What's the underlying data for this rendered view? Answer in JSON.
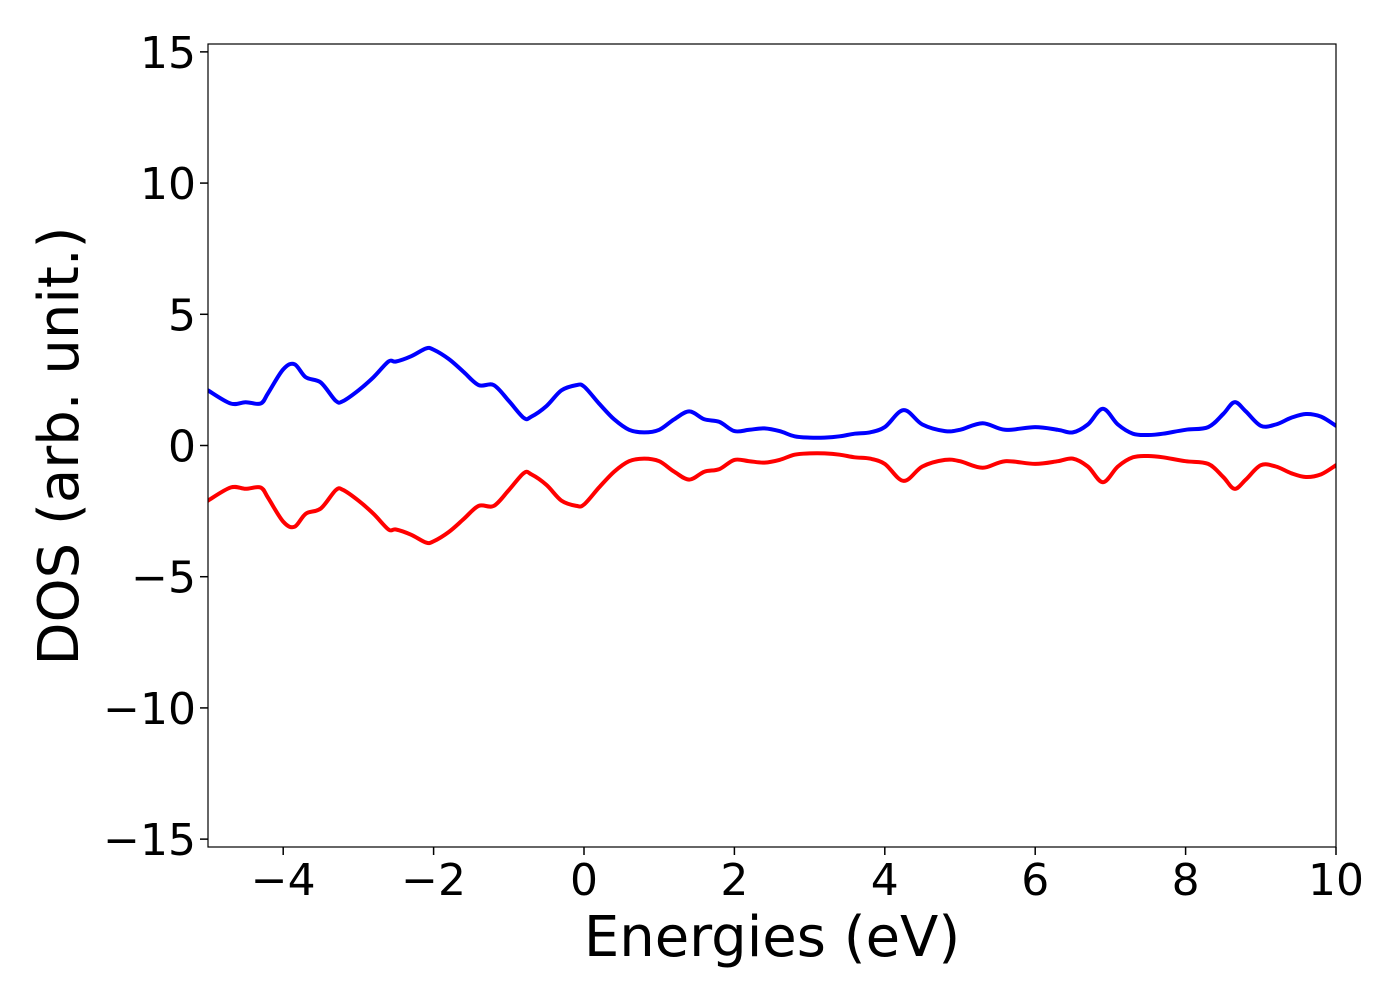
{
  "chart_data": {
    "type": "line",
    "title": "",
    "xlabel": "Energies (eV)",
    "ylabel": "DOS (arb. unit.)",
    "xlim": [
      -5,
      10
    ],
    "ylim": [
      -15.3,
      15.3
    ],
    "xticks": [
      -4,
      -2,
      0,
      2,
      4,
      6,
      8,
      10
    ],
    "xtick_labels": [
      "−4",
      "−2",
      "0",
      "2",
      "4",
      "6",
      "8",
      "10"
    ],
    "yticks": [
      15,
      10,
      5,
      0,
      -5,
      -10,
      -15
    ],
    "ytick_labels": [
      "15",
      "10",
      "5",
      "0",
      "−5",
      "−10",
      "−15"
    ],
    "grid": false,
    "legend": "none",
    "series": [
      {
        "color": "#0000ff",
        "x": [
          -5.0,
          -4.7,
          -4.5,
          -4.3,
          -4.2,
          -4.0,
          -3.85,
          -3.7,
          -3.5,
          -3.3,
          -3.2,
          -3.0,
          -2.8,
          -2.6,
          -2.5,
          -2.3,
          -2.1,
          -2.0,
          -1.8,
          -1.6,
          -1.4,
          -1.2,
          -1.0,
          -0.8,
          -0.7,
          -0.5,
          -0.3,
          -0.1,
          0.0,
          0.2,
          0.4,
          0.6,
          0.8,
          1.0,
          1.2,
          1.4,
          1.6,
          1.8,
          2.0,
          2.2,
          2.4,
          2.6,
          2.8,
          3.0,
          3.2,
          3.4,
          3.6,
          3.8,
          4.0,
          4.25,
          4.5,
          4.8,
          5.0,
          5.3,
          5.6,
          6.0,
          6.3,
          6.5,
          6.7,
          6.9,
          7.1,
          7.3,
          7.5,
          7.7,
          8.0,
          8.3,
          8.5,
          8.65,
          8.8,
          9.0,
          9.2,
          9.4,
          9.6,
          9.8,
          10.0
        ],
        "y": [
          2.1,
          1.6,
          1.65,
          1.6,
          2.0,
          2.9,
          3.1,
          2.6,
          2.4,
          1.7,
          1.7,
          2.1,
          2.6,
          3.2,
          3.2,
          3.4,
          3.7,
          3.65,
          3.3,
          2.8,
          2.3,
          2.3,
          1.7,
          1.05,
          1.1,
          1.5,
          2.1,
          2.3,
          2.25,
          1.6,
          1.0,
          0.6,
          0.5,
          0.6,
          1.0,
          1.3,
          1.0,
          0.9,
          0.55,
          0.6,
          0.65,
          0.55,
          0.35,
          0.3,
          0.3,
          0.35,
          0.45,
          0.5,
          0.7,
          1.35,
          0.8,
          0.55,
          0.6,
          0.85,
          0.6,
          0.7,
          0.6,
          0.5,
          0.8,
          1.4,
          0.8,
          0.45,
          0.4,
          0.45,
          0.6,
          0.7,
          1.2,
          1.65,
          1.3,
          0.75,
          0.8,
          1.05,
          1.2,
          1.1,
          0.75
        ]
      },
      {
        "color": "#ff0000",
        "x": [
          -5.0,
          -4.7,
          -4.5,
          -4.3,
          -4.2,
          -4.0,
          -3.85,
          -3.7,
          -3.5,
          -3.3,
          -3.2,
          -3.0,
          -2.8,
          -2.6,
          -2.5,
          -2.3,
          -2.1,
          -2.0,
          -1.8,
          -1.6,
          -1.4,
          -1.2,
          -1.0,
          -0.8,
          -0.7,
          -0.5,
          -0.3,
          -0.1,
          0.0,
          0.2,
          0.4,
          0.6,
          0.8,
          1.0,
          1.2,
          1.4,
          1.6,
          1.8,
          2.0,
          2.2,
          2.4,
          2.6,
          2.8,
          3.0,
          3.2,
          3.4,
          3.6,
          3.8,
          4.0,
          4.25,
          4.5,
          4.8,
          5.0,
          5.3,
          5.6,
          6.0,
          6.3,
          6.5,
          6.7,
          6.9,
          7.1,
          7.3,
          7.5,
          7.7,
          8.0,
          8.3,
          8.5,
          8.65,
          8.8,
          9.0,
          9.2,
          9.4,
          9.6,
          9.8,
          10.0
        ],
        "y": [
          -2.1,
          -1.6,
          -1.65,
          -1.6,
          -2.0,
          -2.9,
          -3.1,
          -2.6,
          -2.4,
          -1.7,
          -1.7,
          -2.1,
          -2.6,
          -3.2,
          -3.2,
          -3.4,
          -3.7,
          -3.65,
          -3.3,
          -2.8,
          -2.3,
          -2.3,
          -1.7,
          -1.05,
          -1.1,
          -1.5,
          -2.1,
          -2.3,
          -2.25,
          -1.6,
          -1.0,
          -0.6,
          -0.5,
          -0.6,
          -1.0,
          -1.3,
          -1.0,
          -0.9,
          -0.55,
          -0.6,
          -0.65,
          -0.55,
          -0.35,
          -0.3,
          -0.3,
          -0.35,
          -0.45,
          -0.5,
          -0.7,
          -1.35,
          -0.8,
          -0.55,
          -0.6,
          -0.85,
          -0.6,
          -0.7,
          -0.6,
          -0.5,
          -0.8,
          -1.4,
          -0.8,
          -0.45,
          -0.4,
          -0.45,
          -0.6,
          -0.7,
          -1.2,
          -1.65,
          -1.3,
          -0.75,
          -0.8,
          -1.05,
          -1.2,
          -1.1,
          -0.75
        ]
      }
    ]
  }
}
